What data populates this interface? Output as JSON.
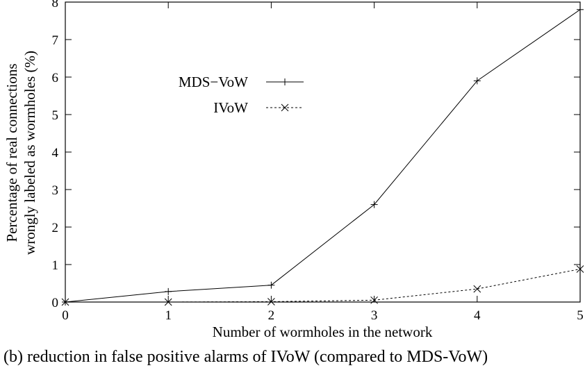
{
  "chart_data": {
    "type": "line",
    "x": [
      0,
      1,
      2,
      3,
      4,
      5
    ],
    "series": [
      {
        "name": "MDS−VoW",
        "values": [
          0,
          0.28,
          0.45,
          2.6,
          5.9,
          7.8
        ],
        "marker": "+",
        "line_style": "solid",
        "color": "#000000"
      },
      {
        "name": "IVoW",
        "values": [
          0,
          0,
          0.01,
          0.05,
          0.35,
          0.88
        ],
        "marker": "x",
        "line_style": "dashed",
        "color": "#000000"
      }
    ],
    "xlabel": "Number of wormholes in the network",
    "ylabel_lines": [
      "Percentage of real connections",
      "wrongly labeled as wormholes (%)"
    ],
    "xticks": [
      "0",
      "1",
      "2",
      "3",
      "4",
      "5"
    ],
    "yticks": [
      "0",
      "1",
      "2",
      "3",
      "4",
      "5",
      "6",
      "7",
      "8"
    ],
    "xlim": [
      0,
      5
    ],
    "ylim": [
      0,
      8
    ],
    "grid": false,
    "legend_position": "upper-left"
  },
  "caption": "(b) reduction in false positive alarms of IVoW (compared to MDS-VoW)"
}
